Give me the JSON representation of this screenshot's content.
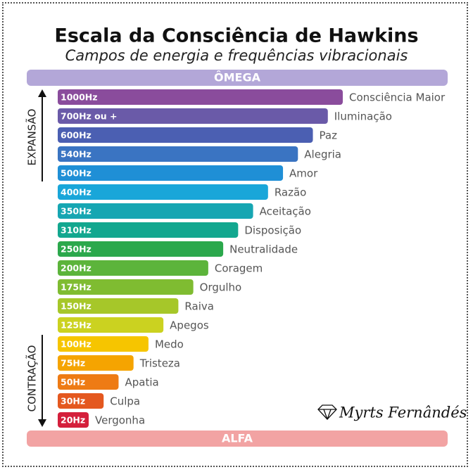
{
  "header": {
    "title": "Escala da Consciência de Hawkins",
    "subtitle": "Campos de energia e frequências vibracionais"
  },
  "top_label": "ÔMEGA",
  "bottom_label": "ALFA",
  "side": {
    "expansion": "EXPANSÃO",
    "contraction": "CONTRAÇÃO"
  },
  "levels": [
    {
      "hz": "1000Hz",
      "name": "Consciência Maior",
      "color": "#8a4c9c"
    },
    {
      "hz": "700Hz ou +",
      "name": "Iluminação",
      "color": "#6a5aa8"
    },
    {
      "hz": "600Hz",
      "name": "Paz",
      "color": "#4b5fb2"
    },
    {
      "hz": "540Hz",
      "name": "Alegria",
      "color": "#3a74c2"
    },
    {
      "hz": "500Hz",
      "name": "Amor",
      "color": "#1f8fd6"
    },
    {
      "hz": "400Hz",
      "name": "Razão",
      "color": "#19a6d9"
    },
    {
      "hz": "350Hz",
      "name": "Aceitação",
      "color": "#16a6b2"
    },
    {
      "hz": "310Hz",
      "name": "Disposição",
      "color": "#12a78f"
    },
    {
      "hz": "250Hz",
      "name": "Neutralidade",
      "color": "#2ba84c"
    },
    {
      "hz": "200Hz",
      "name": "Coragem",
      "color": "#5cb43b"
    },
    {
      "hz": "175Hz",
      "name": "Orgulho",
      "color": "#7fbc31"
    },
    {
      "hz": "150Hz",
      "name": "Raiva",
      "color": "#a6c729"
    },
    {
      "hz": "125Hz",
      "name": "Apegos",
      "color": "#cbd220"
    },
    {
      "hz": "100Hz",
      "name": "Medo",
      "color": "#f6c500"
    },
    {
      "hz": "75Hz",
      "name": "Tristeza",
      "color": "#f5a401"
    },
    {
      "hz": "50Hz",
      "name": "Apatia",
      "color": "#ee7b14"
    },
    {
      "hz": "30Hz",
      "name": "Culpa",
      "color": "#e4581f"
    },
    {
      "hz": "20Hz",
      "name": "Vergonha",
      "color": "#d41f3b"
    }
  ],
  "signature": "Myrts Fernândés"
}
